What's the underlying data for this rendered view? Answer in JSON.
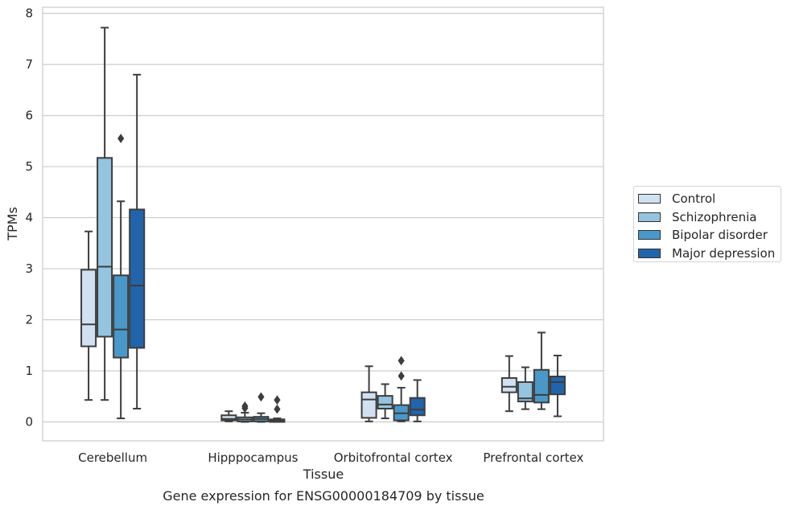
{
  "chart_data": {
    "type": "box",
    "title": "Gene expression for ENSG00000184709 by tissue",
    "xlabel": "Tissue",
    "ylabel": "TPMs",
    "ylim": [
      -0.37,
      8.12
    ],
    "yticks": [
      0,
      1,
      2,
      3,
      4,
      5,
      6,
      7,
      8
    ],
    "grid": true,
    "legend_position": "right",
    "categories": [
      "Cerebellum",
      "Hipppocampus",
      "Orbitofrontal cortex",
      "Prefrontal cortex"
    ],
    "series": [
      {
        "name": "Control",
        "color": "#d0e1f2",
        "boxes": [
          {
            "whislo": 0.43,
            "q1": 1.48,
            "med": 1.91,
            "q3": 2.98,
            "whishi": 3.73,
            "fliers": []
          },
          {
            "whislo": 0.01,
            "q1": 0.03,
            "med": 0.06,
            "q3": 0.13,
            "whishi": 0.21,
            "fliers": []
          },
          {
            "whislo": 0.01,
            "q1": 0.08,
            "med": 0.44,
            "q3": 0.58,
            "whishi": 1.09,
            "fliers": []
          },
          {
            "whislo": 0.21,
            "q1": 0.58,
            "med": 0.69,
            "q3": 0.86,
            "whishi": 1.29,
            "fliers": []
          }
        ]
      },
      {
        "name": "Schizophrenia",
        "color": "#94c4df",
        "boxes": [
          {
            "whislo": 0.43,
            "q1": 1.67,
            "med": 3.04,
            "q3": 5.17,
            "whishi": 7.72,
            "fliers": []
          },
          {
            "whislo": 0.0,
            "q1": 0.01,
            "med": 0.05,
            "q3": 0.09,
            "whishi": 0.18,
            "fliers": [
              0.27,
              0.31
            ]
          },
          {
            "whislo": 0.07,
            "q1": 0.26,
            "med": 0.34,
            "q3": 0.51,
            "whishi": 0.74,
            "fliers": []
          },
          {
            "whislo": 0.25,
            "q1": 0.4,
            "med": 0.46,
            "q3": 0.78,
            "whishi": 1.07,
            "fliers": []
          }
        ]
      },
      {
        "name": "Bipolar disorder",
        "color": "#4a98c9",
        "boxes": [
          {
            "whislo": 0.07,
            "q1": 1.26,
            "med": 1.81,
            "q3": 2.87,
            "whishi": 4.32,
            "fliers": [
              5.55
            ]
          },
          {
            "whislo": 0.0,
            "q1": 0.01,
            "med": 0.06,
            "q3": 0.1,
            "whishi": 0.17,
            "fliers": [
              0.49
            ]
          },
          {
            "whislo": 0.01,
            "q1": 0.03,
            "med": 0.17,
            "q3": 0.33,
            "whishi": 0.67,
            "fliers": [
              0.9,
              1.2
            ]
          },
          {
            "whislo": 0.25,
            "q1": 0.38,
            "med": 0.53,
            "q3": 1.02,
            "whishi": 1.75,
            "fliers": []
          }
        ]
      },
      {
        "name": "Major depression",
        "color": "#2164ab",
        "boxes": [
          {
            "whislo": 0.26,
            "q1": 1.45,
            "med": 2.67,
            "q3": 4.16,
            "whishi": 6.8,
            "fliers": []
          },
          {
            "whislo": 0.0,
            "q1": 0.0,
            "med": 0.02,
            "q3": 0.05,
            "whishi": 0.07,
            "fliers": [
              0.25,
              0.43
            ]
          },
          {
            "whislo": 0.01,
            "q1": 0.13,
            "med": 0.24,
            "q3": 0.47,
            "whishi": 0.82,
            "fliers": []
          },
          {
            "whislo": 0.11,
            "q1": 0.54,
            "med": 0.78,
            "q3": 0.89,
            "whishi": 1.3,
            "fliers": []
          }
        ]
      }
    ]
  }
}
